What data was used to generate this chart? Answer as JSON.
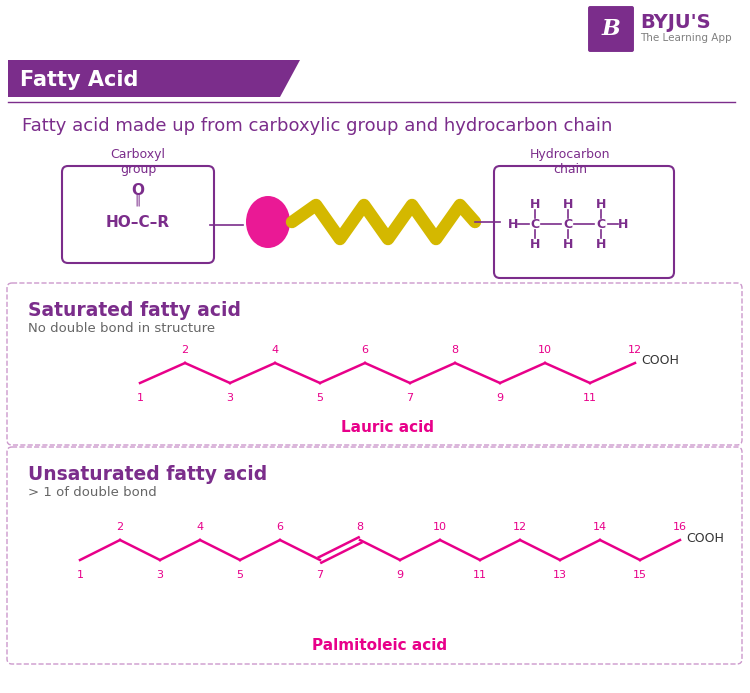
{
  "title": "Fatty Acid",
  "title_bg": "#7b2d8b",
  "subtitle": "Fatty acid made up from carboxylic group and hydrocarbon chain",
  "subtitle_color": "#7b2d8b",
  "bg_color": "#ffffff",
  "pink": "#e8008a",
  "purple": "#7b2d8b",
  "yellow_chain": "#d4b800",
  "carboxyl_label": "Carboxyl\ngroup",
  "hydrocarbon_label": "Hydrocarbon\nchain",
  "sat_title": "Saturated fatty acid",
  "sat_sub": "No double bond in structure",
  "sat_name": "Lauric acid",
  "unsat_title": "Unsaturated fatty acid",
  "unsat_sub": "> 1 of double bond",
  "unsat_name": "Palmitoleic acid",
  "box_edge": "#cc99cc",
  "dark_text": "#333333",
  "gray_text": "#666666",
  "byju_purple": "#7b2d8b",
  "figw": 7.5,
  "figh": 6.93
}
